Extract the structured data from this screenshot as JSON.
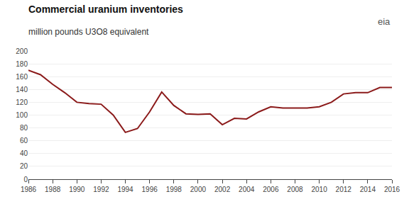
{
  "chart_data": {
    "type": "line",
    "title": "Commercial uranium inventories",
    "subtitle": "million pounds U3O8 equivalent",
    "annotations": [
      "eia"
    ],
    "x": [
      1986,
      1987,
      1988,
      1989,
      1990,
      1991,
      1992,
      1993,
      1994,
      1995,
      1996,
      1997,
      1998,
      1999,
      2000,
      2001,
      2002,
      2003,
      2004,
      2005,
      2006,
      2007,
      2008,
      2009,
      2010,
      2011,
      2012,
      2013,
      2014,
      2015,
      2016
    ],
    "values": [
      170,
      163,
      148,
      135,
      120,
      118,
      117,
      100,
      73,
      79,
      105,
      136,
      115,
      102,
      101,
      102,
      85,
      95,
      94,
      105,
      113,
      111,
      111,
      111,
      113,
      120,
      133,
      135,
      135,
      143,
      143
    ],
    "color": "#8B1A1A",
    "xlim": [
      1986,
      2016
    ],
    "xticks": [
      1986,
      1988,
      1990,
      1992,
      1994,
      1996,
      1998,
      2000,
      2002,
      2004,
      2006,
      2008,
      2010,
      2012,
      2014,
      2016
    ],
    "ylim": [
      0,
      200
    ],
    "yticks": [
      0,
      20,
      40,
      60,
      80,
      100,
      120,
      140,
      160,
      180,
      200
    ],
    "grid": true
  }
}
